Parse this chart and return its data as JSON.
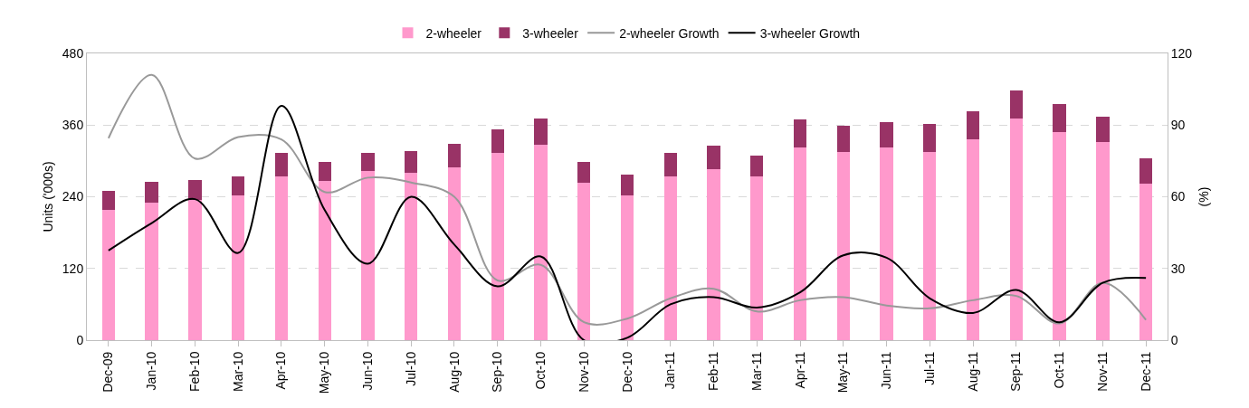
{
  "chart_data": {
    "type": "bar",
    "stacked": true,
    "categories": [
      "Dec-09",
      "Jan-10",
      "Feb-10",
      "Mar-10",
      "Apr-10",
      "May-10",
      "Jun-10",
      "Jul-10",
      "Aug-10",
      "Sep-10",
      "Oct-10",
      "Nov-10",
      "Dec-10",
      "Jan-11",
      "Feb-11",
      "Mar-11",
      "Apr-11",
      "May-11",
      "Jun-11",
      "Jul-11",
      "Aug-11",
      "Sep-11",
      "Oct-11",
      "Nov-11",
      "Dec-11"
    ],
    "series": [
      {
        "name": "2-wheeler",
        "color": "#ff99cc",
        "values": [
          218,
          230,
          235,
          242,
          274,
          266,
          283,
          280,
          289,
          313,
          327,
          263,
          242,
          274,
          286,
          274,
          322,
          315,
          322,
          315,
          336,
          371,
          348,
          331,
          262
        ]
      },
      {
        "name": "3-wheeler",
        "color": "#993366",
        "values": [
          32,
          35,
          33,
          32,
          39,
          32,
          30,
          36,
          40,
          40,
          44,
          35,
          35,
          39,
          39,
          35,
          47,
          44,
          43,
          47,
          47,
          47,
          47,
          43,
          42
        ]
      },
      {
        "name": "2-wheeler Growth",
        "type": "line",
        "axis": "y2",
        "color": "#999999",
        "values": [
          84.5,
          111,
          76,
          85,
          84,
          62,
          68,
          66,
          60,
          25,
          31.5,
          7.5,
          9,
          17.5,
          21.5,
          12,
          16.7,
          18,
          14.5,
          13.3,
          16.7,
          18.5,
          7,
          24,
          8.5
        ]
      },
      {
        "name": "3-wheeler Growth",
        "type": "line",
        "axis": "y2",
        "color": "#000000",
        "values": [
          37.5,
          49,
          59,
          36.5,
          98,
          54.5,
          32,
          60,
          40,
          22.5,
          35,
          0,
          1,
          15,
          18,
          13.6,
          20,
          35.5,
          34.5,
          17.5,
          11.4,
          21,
          7.5,
          24,
          26
        ]
      }
    ],
    "ylabel": "Units ('000s)",
    "y2label": "(%)",
    "ylim": [
      0,
      480
    ],
    "yticks": [
      0,
      120,
      240,
      360,
      480
    ],
    "y2lim": [
      0,
      120
    ],
    "y2ticks": [
      0,
      30,
      60,
      90,
      120
    ],
    "grid": "y",
    "legend": "top"
  }
}
